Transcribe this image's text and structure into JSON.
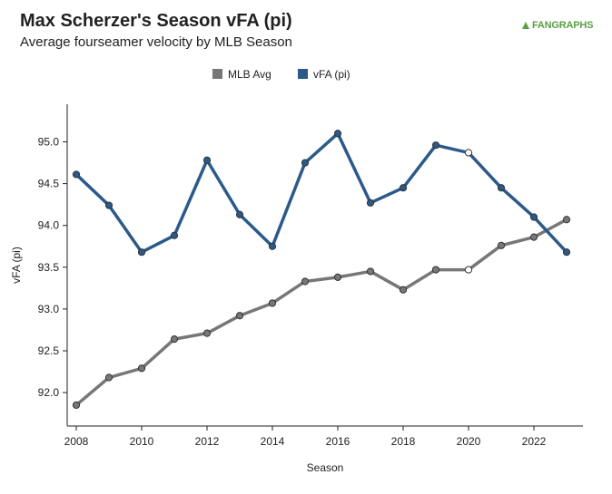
{
  "header": {
    "title": "Max Scherzer's Season vFA (pi)",
    "subtitle": "Average fourseamer velocity by MLB Season",
    "logo_text": "FANGRAPHS"
  },
  "colors": {
    "mlb_avg": "#777777",
    "vfa": "#2b5a8a",
    "highlight_marker_fill": "#ffffff"
  },
  "chart_data": {
    "type": "line",
    "title": "Max Scherzer's Season vFA (pi)",
    "subtitle": "Average fourseamer velocity by MLB Season",
    "xlabel": "Season",
    "ylabel": "vFA (pi)",
    "xlim": [
      2008,
      2023
    ],
    "ylim": [
      91.6,
      95.45
    ],
    "x_ticks": [
      2008,
      2010,
      2012,
      2014,
      2016,
      2018,
      2020,
      2022
    ],
    "y_ticks": [
      92.0,
      92.5,
      93.0,
      93.5,
      94.0,
      94.5,
      95.0
    ],
    "legend_position": "top-center",
    "grid": false,
    "highlight_x": 2020,
    "x": [
      2008,
      2009,
      2010,
      2011,
      2012,
      2013,
      2014,
      2015,
      2016,
      2017,
      2018,
      2019,
      2020,
      2021,
      2022,
      2023
    ],
    "series": [
      {
        "name": "MLB Avg",
        "color": "#777777",
        "values": [
          91.85,
          92.18,
          92.29,
          92.64,
          92.71,
          92.92,
          93.07,
          93.33,
          93.38,
          93.45,
          93.23,
          93.47,
          93.47,
          93.76,
          93.86,
          94.07
        ]
      },
      {
        "name": "vFA (pi)",
        "color": "#2b5a8a",
        "values": [
          94.61,
          94.24,
          93.68,
          93.88,
          94.78,
          94.13,
          93.75,
          94.75,
          95.1,
          94.27,
          94.45,
          94.96,
          94.87,
          94.45,
          94.1,
          93.68
        ]
      }
    ]
  }
}
